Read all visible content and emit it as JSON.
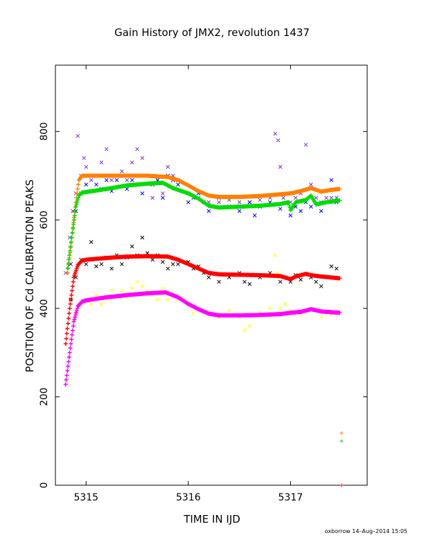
{
  "chart_data": {
    "type": "scatter",
    "title": "Gain History of JMX2, revolution 1437",
    "xlabel": "TIME IN IJD",
    "ylabel": "POSITION OF Cd CALIBRATION PEAKS",
    "xlim": [
      5314.7,
      5317.75
    ],
    "ylim": [
      0,
      950
    ],
    "xticks": [
      5315,
      5316,
      5317
    ],
    "yticks": [
      0,
      200,
      400,
      600,
      800
    ],
    "grid": false,
    "legend": "none",
    "footer": "oxborrow 14–Aug–2014 15:05",
    "series": [
      {
        "marker": "x",
        "color": "#7b2fd6",
        "kind": "scatter",
        "points": [
          [
            5314.8,
            480
          ],
          [
            5314.84,
            560
          ],
          [
            5314.87,
            620
          ],
          [
            5314.9,
            660
          ],
          [
            5314.92,
            790
          ],
          [
            5314.95,
            700
          ],
          [
            5314.98,
            740
          ],
          [
            5315.0,
            720
          ],
          [
            5315.05,
            690
          ],
          [
            5315.1,
            700
          ],
          [
            5315.15,
            730
          ],
          [
            5315.2,
            760
          ],
          [
            5315.25,
            690
          ],
          [
            5315.3,
            700
          ],
          [
            5315.35,
            710
          ],
          [
            5315.4,
            690
          ],
          [
            5315.45,
            730
          ],
          [
            5315.5,
            760
          ],
          [
            5315.55,
            740
          ],
          [
            5315.6,
            700
          ],
          [
            5315.65,
            650
          ],
          [
            5315.7,
            690
          ],
          [
            5315.75,
            660
          ],
          [
            5315.8,
            720
          ],
          [
            5315.85,
            700
          ],
          [
            5315.9,
            690
          ],
          [
            5316.0,
            660
          ],
          [
            5316.1,
            650
          ],
          [
            5316.2,
            640
          ],
          [
            5316.3,
            640
          ],
          [
            5316.4,
            645
          ],
          [
            5316.5,
            640
          ],
          [
            5316.6,
            640
          ],
          [
            5316.7,
            645
          ],
          [
            5316.8,
            650
          ],
          [
            5316.85,
            795
          ],
          [
            5316.88,
            780
          ],
          [
            5316.9,
            720
          ],
          [
            5316.93,
            650
          ],
          [
            5317.0,
            640
          ],
          [
            5317.05,
            650
          ],
          [
            5317.1,
            660
          ],
          [
            5317.15,
            770
          ],
          [
            5317.2,
            680
          ],
          [
            5317.25,
            650
          ],
          [
            5317.3,
            640
          ],
          [
            5317.35,
            650
          ],
          [
            5317.4,
            650
          ],
          [
            5317.45,
            650
          ]
        ]
      },
      {
        "marker": "x",
        "color": "#0000ff",
        "kind": "scatter",
        "points": [
          [
            5314.85,
            500
          ],
          [
            5314.9,
            620
          ],
          [
            5314.95,
            660
          ],
          [
            5315.0,
            680
          ],
          [
            5315.05,
            665
          ],
          [
            5315.1,
            680
          ],
          [
            5315.15,
            670
          ],
          [
            5315.2,
            690
          ],
          [
            5315.25,
            665
          ],
          [
            5315.3,
            690
          ],
          [
            5315.35,
            700
          ],
          [
            5315.4,
            670
          ],
          [
            5315.45,
            690
          ],
          [
            5315.5,
            680
          ],
          [
            5315.55,
            660
          ],
          [
            5315.6,
            700
          ],
          [
            5315.65,
            680
          ],
          [
            5315.7,
            690
          ],
          [
            5315.75,
            650
          ],
          [
            5315.8,
            700
          ],
          [
            5315.85,
            690
          ],
          [
            5315.9,
            680
          ],
          [
            5316.0,
            640
          ],
          [
            5316.05,
            650
          ],
          [
            5316.1,
            660
          ],
          [
            5316.15,
            640
          ],
          [
            5316.2,
            620
          ],
          [
            5316.3,
            650
          ],
          [
            5316.4,
            630
          ],
          [
            5316.5,
            620
          ],
          [
            5316.6,
            640
          ],
          [
            5316.65,
            610
          ],
          [
            5316.7,
            630
          ],
          [
            5316.8,
            640
          ],
          [
            5316.9,
            625
          ],
          [
            5317.0,
            610
          ],
          [
            5317.05,
            630
          ],
          [
            5317.1,
            620
          ],
          [
            5317.15,
            640
          ],
          [
            5317.2,
            630
          ],
          [
            5317.3,
            620
          ],
          [
            5317.35,
            640
          ],
          [
            5317.4,
            690
          ],
          [
            5317.45,
            640
          ]
        ]
      },
      {
        "marker": "x",
        "color": "#000000",
        "kind": "scatter",
        "points": [
          [
            5314.85,
            420
          ],
          [
            5314.9,
            470
          ],
          [
            5314.95,
            510
          ],
          [
            5315.0,
            500
          ],
          [
            5315.05,
            550
          ],
          [
            5315.1,
            495
          ],
          [
            5315.15,
            500
          ],
          [
            5315.2,
            515
          ],
          [
            5315.25,
            490
          ],
          [
            5315.3,
            520
          ],
          [
            5315.35,
            500
          ],
          [
            5315.4,
            515
          ],
          [
            5315.45,
            540
          ],
          [
            5315.5,
            520
          ],
          [
            5315.55,
            560
          ],
          [
            5315.6,
            525
          ],
          [
            5315.65,
            510
          ],
          [
            5315.7,
            520
          ],
          [
            5315.75,
            505
          ],
          [
            5315.8,
            490
          ],
          [
            5315.85,
            500
          ],
          [
            5315.9,
            500
          ],
          [
            5316.0,
            505
          ],
          [
            5316.05,
            490
          ],
          [
            5316.1,
            495
          ],
          [
            5316.15,
            480
          ],
          [
            5316.2,
            470
          ],
          [
            5316.3,
            460
          ],
          [
            5316.4,
            470
          ],
          [
            5316.5,
            480
          ],
          [
            5316.55,
            460
          ],
          [
            5316.6,
            455
          ],
          [
            5316.7,
            470
          ],
          [
            5316.8,
            480
          ],
          [
            5316.9,
            460
          ],
          [
            5316.95,
            470
          ],
          [
            5317.0,
            460
          ],
          [
            5317.05,
            475
          ],
          [
            5317.1,
            465
          ],
          [
            5317.2,
            470
          ],
          [
            5317.25,
            460
          ],
          [
            5317.3,
            450
          ],
          [
            5317.4,
            495
          ],
          [
            5317.45,
            490
          ]
        ]
      },
      {
        "marker": "x",
        "color": "#ffff00",
        "kind": "scatter",
        "points": [
          [
            5314.85,
            330
          ],
          [
            5314.9,
            390
          ],
          [
            5314.95,
            410
          ],
          [
            5315.0,
            420
          ],
          [
            5315.05,
            410
          ],
          [
            5315.1,
            430
          ],
          [
            5315.15,
            410
          ],
          [
            5315.2,
            420
          ],
          [
            5315.25,
            440
          ],
          [
            5315.3,
            430
          ],
          [
            5315.35,
            440
          ],
          [
            5315.4,
            425
          ],
          [
            5315.45,
            445
          ],
          [
            5315.5,
            460
          ],
          [
            5315.55,
            450
          ],
          [
            5315.6,
            440
          ],
          [
            5315.65,
            430
          ],
          [
            5315.7,
            420
          ],
          [
            5315.75,
            445
          ],
          [
            5315.8,
            420
          ],
          [
            5315.9,
            420
          ],
          [
            5316.0,
            410
          ],
          [
            5316.05,
            390
          ],
          [
            5316.1,
            400
          ],
          [
            5316.2,
            390
          ],
          [
            5316.3,
            380
          ],
          [
            5316.4,
            395
          ],
          [
            5316.5,
            380
          ],
          [
            5316.55,
            350
          ],
          [
            5316.6,
            360
          ],
          [
            5316.7,
            390
          ],
          [
            5316.8,
            400
          ],
          [
            5316.85,
            520
          ],
          [
            5316.87,
            480
          ],
          [
            5316.9,
            400
          ],
          [
            5316.95,
            410
          ],
          [
            5317.0,
            395
          ],
          [
            5317.05,
            390
          ],
          [
            5317.1,
            385
          ],
          [
            5317.15,
            395
          ],
          [
            5317.2,
            400
          ],
          [
            5317.3,
            380
          ],
          [
            5317.4,
            385
          ],
          [
            5317.45,
            395
          ]
        ]
      },
      {
        "marker": "+",
        "color": "#ff8000",
        "kind": "trend",
        "points": [
          [
            5314.82,
            480
          ],
          [
            5314.86,
            560
          ],
          [
            5314.9,
            640
          ],
          [
            5314.93,
            690
          ],
          [
            5314.96,
            700
          ],
          [
            5315.0,
            700
          ],
          [
            5315.2,
            700
          ],
          [
            5315.4,
            700
          ],
          [
            5315.6,
            700
          ],
          [
            5315.8,
            697
          ],
          [
            5315.9,
            690
          ],
          [
            5316.0,
            678
          ],
          [
            5316.1,
            665
          ],
          [
            5316.2,
            655
          ],
          [
            5316.3,
            652
          ],
          [
            5316.5,
            652
          ],
          [
            5316.7,
            654
          ],
          [
            5316.9,
            658
          ],
          [
            5317.0,
            660
          ],
          [
            5317.1,
            665
          ],
          [
            5317.2,
            672
          ],
          [
            5317.3,
            664
          ],
          [
            5317.4,
            668
          ],
          [
            5317.48,
            670
          ]
        ]
      },
      {
        "marker": "+",
        "color": "#00dd00",
        "kind": "trend",
        "points": [
          [
            5314.82,
            490
          ],
          [
            5314.86,
            560
          ],
          [
            5314.9,
            630
          ],
          [
            5314.93,
            655
          ],
          [
            5314.96,
            662
          ],
          [
            5315.0,
            663
          ],
          [
            5315.2,
            670
          ],
          [
            5315.4,
            678
          ],
          [
            5315.6,
            682
          ],
          [
            5315.75,
            684
          ],
          [
            5315.85,
            672
          ],
          [
            5316.0,
            660
          ],
          [
            5316.1,
            648
          ],
          [
            5316.2,
            632
          ],
          [
            5316.3,
            628
          ],
          [
            5316.5,
            630
          ],
          [
            5316.7,
            632
          ],
          [
            5316.9,
            636
          ],
          [
            5316.98,
            640
          ],
          [
            5317.0,
            622
          ],
          [
            5317.05,
            640
          ],
          [
            5317.15,
            645
          ],
          [
            5317.2,
            655
          ],
          [
            5317.25,
            635
          ],
          [
            5317.35,
            640
          ],
          [
            5317.48,
            644
          ]
        ]
      },
      {
        "marker": "+",
        "color": "#ff0000",
        "kind": "trend",
        "points": [
          [
            5314.8,
            320
          ],
          [
            5314.84,
            400
          ],
          [
            5314.88,
            470
          ],
          [
            5314.92,
            498
          ],
          [
            5314.96,
            508
          ],
          [
            5315.0,
            510
          ],
          [
            5315.2,
            514
          ],
          [
            5315.4,
            517
          ],
          [
            5315.6,
            518
          ],
          [
            5315.8,
            517
          ],
          [
            5315.9,
            510
          ],
          [
            5316.0,
            500
          ],
          [
            5316.1,
            490
          ],
          [
            5316.2,
            480
          ],
          [
            5316.3,
            477
          ],
          [
            5316.5,
            476
          ],
          [
            5316.7,
            475
          ],
          [
            5316.9,
            473
          ],
          [
            5317.0,
            466
          ],
          [
            5317.05,
            472
          ],
          [
            5317.15,
            478
          ],
          [
            5317.2,
            475
          ],
          [
            5317.3,
            472
          ],
          [
            5317.48,
            468
          ]
        ]
      },
      {
        "marker": "+",
        "color": "#ff00ff",
        "kind": "trend",
        "points": [
          [
            5314.8,
            228
          ],
          [
            5314.84,
            300
          ],
          [
            5314.88,
            370
          ],
          [
            5314.92,
            405
          ],
          [
            5314.96,
            415
          ],
          [
            5315.0,
            418
          ],
          [
            5315.2,
            425
          ],
          [
            5315.4,
            430
          ],
          [
            5315.6,
            434
          ],
          [
            5315.78,
            436
          ],
          [
            5315.9,
            425
          ],
          [
            5316.0,
            410
          ],
          [
            5316.1,
            398
          ],
          [
            5316.2,
            388
          ],
          [
            5316.3,
            384
          ],
          [
            5316.5,
            384
          ],
          [
            5316.7,
            385
          ],
          [
            5316.9,
            387
          ],
          [
            5317.0,
            390
          ],
          [
            5317.1,
            392
          ],
          [
            5317.2,
            398
          ],
          [
            5317.3,
            393
          ],
          [
            5317.48,
            390
          ]
        ]
      },
      {
        "marker": "+",
        "color": "#ff8000",
        "kind": "scatter",
        "points": [
          [
            5317.5,
            118
          ]
        ]
      },
      {
        "marker": "+",
        "color": "#00dd00",
        "kind": "scatter",
        "points": [
          [
            5317.5,
            100
          ]
        ]
      },
      {
        "marker": "+",
        "color": "#ff0000",
        "kind": "scatter",
        "points": [
          [
            5317.5,
            0
          ]
        ]
      }
    ]
  }
}
